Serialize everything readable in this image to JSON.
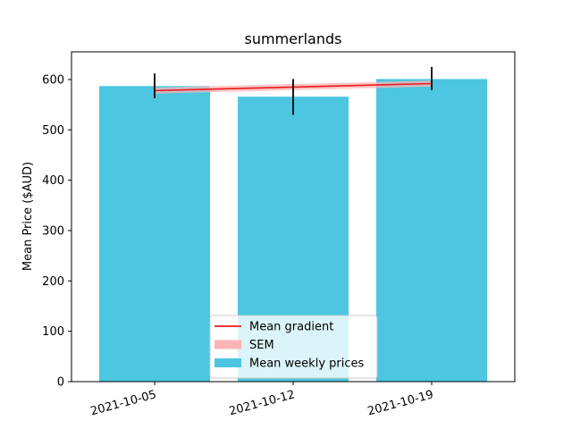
{
  "chart_data": {
    "type": "bar",
    "title": "summerlands",
    "xlabel": "",
    "ylabel": "Mean Price ($AUD)",
    "ylim": [
      0,
      655
    ],
    "yticks": [
      0,
      100,
      200,
      300,
      400,
      500,
      600
    ],
    "categories": [
      "2021-10-05",
      "2021-10-12",
      "2021-10-19"
    ],
    "series": [
      {
        "name": "Mean weekly prices",
        "type": "bar",
        "color": "#4cc6e1",
        "values": [
          587,
          566,
          601
        ]
      },
      {
        "name": "Mean gradient",
        "type": "line",
        "color": "#e8191c",
        "values": [
          578,
          585,
          592
        ]
      },
      {
        "name": "SEM",
        "type": "band",
        "color": "#fbb4b4",
        "lower": [
          572,
          579,
          586
        ],
        "upper": [
          584,
          591,
          598
        ]
      }
    ],
    "error_bars": {
      "color": "#000000",
      "lower": [
        563,
        530,
        579
      ],
      "upper": [
        612,
        601,
        625
      ]
    },
    "legend": {
      "position": "lower-center",
      "entries": [
        "Mean gradient",
        "SEM",
        "Mean weekly prices"
      ]
    },
    "grid": false
  }
}
